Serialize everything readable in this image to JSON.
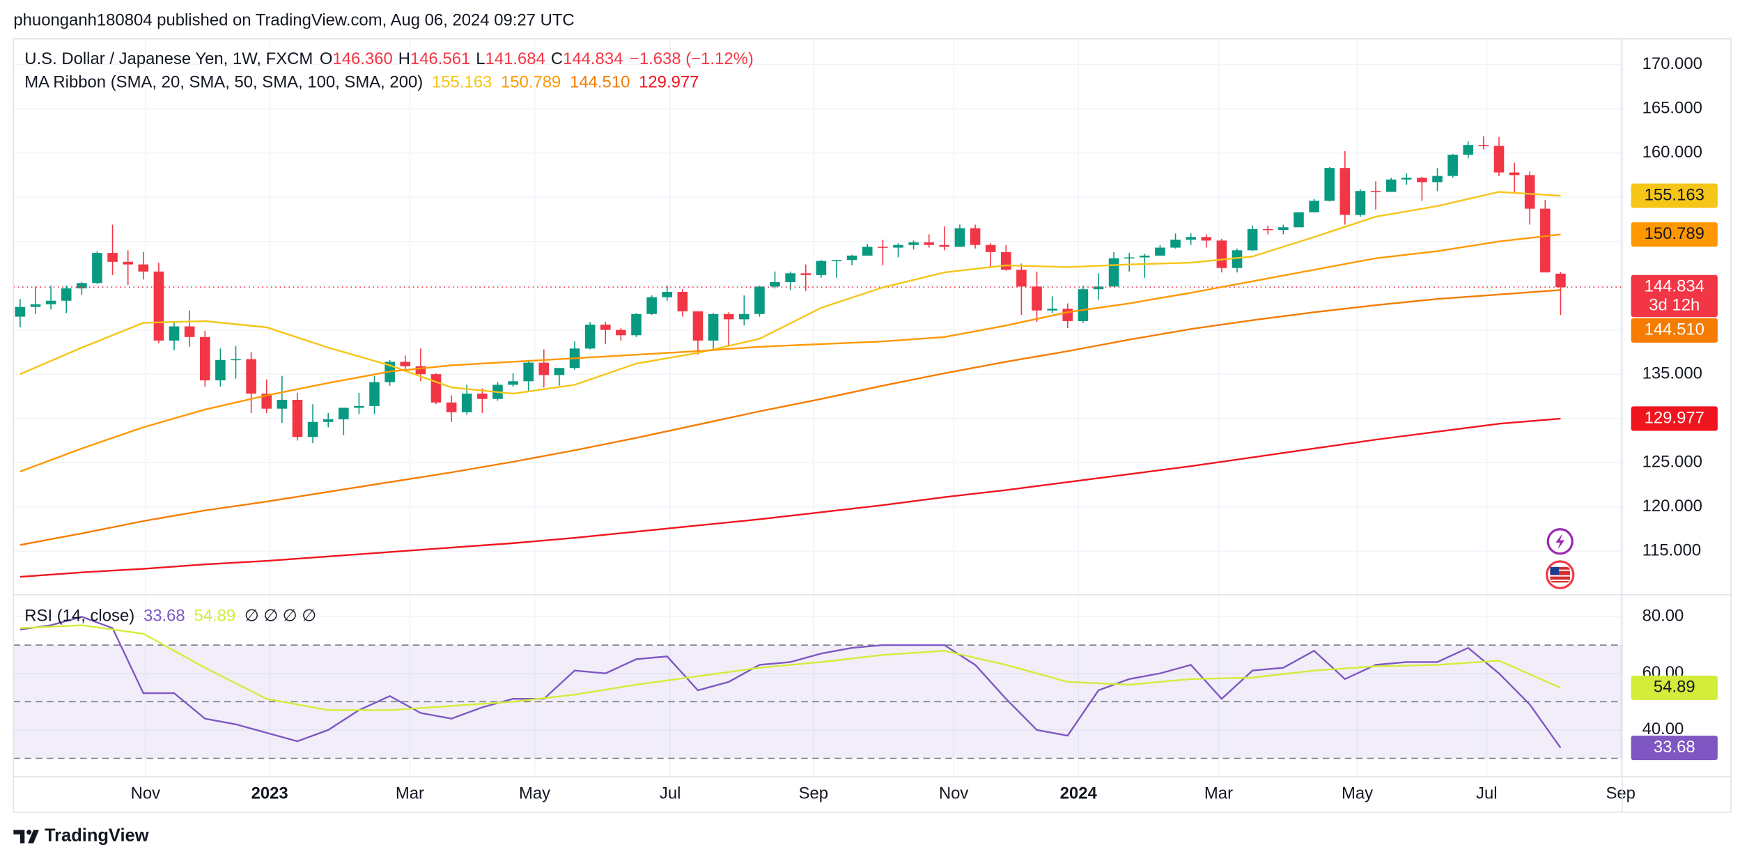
{
  "header": {
    "published": "phuonganh180804 published on TradingView.com, Aug 06, 2024 09:27 UTC"
  },
  "footer": {
    "brand": "TradingView"
  },
  "chart_data": [
    {
      "type": "candlestick",
      "title": "U.S. Dollar / Japanese Yen, 1W, FXCM",
      "ohlc_legend": [
        {
          "key": "O",
          "value": "146.360"
        },
        {
          "key": "H",
          "value": "146.561"
        },
        {
          "key": "L",
          "value": "141.684"
        },
        {
          "key": "C",
          "value": "144.834"
        }
      ],
      "change": "−1.638 (−1.12%)",
      "indicator": "MA Ribbon (SMA, 20, SMA, 50, SMA, 100, SMA, 200)",
      "up_color": "#089981",
      "down_color": "#f23645",
      "open": [
        141.5,
        142.6,
        142.9,
        143.3,
        144.7,
        145.3,
        148.7,
        147.7,
        147.4,
        146.6,
        138.8,
        140.4,
        139.2,
        134.3,
        136.6,
        136.7,
        132.8,
        131.1,
        132.1,
        127.9,
        129.6,
        129.9,
        131.2,
        131.4,
        134.1,
        136.4,
        135.9,
        135.0,
        131.8,
        130.7,
        132.8,
        132.2,
        133.8,
        134.2,
        136.3,
        134.9,
        135.7,
        137.9,
        140.6,
        140.0,
        139.4,
        141.8,
        143.7,
        144.3,
        142.1,
        138.8,
        141.8,
        141.2,
        141.8,
        144.9,
        145.4,
        146.4,
        146.2,
        147.8,
        147.9,
        148.4,
        149.4,
        149.3,
        149.6,
        149.9,
        149.6,
        149.4,
        151.5,
        149.6,
        148.8,
        146.8,
        144.9,
        142.2,
        142.4,
        141.0,
        144.6,
        144.9,
        148.1,
        148.2,
        148.4,
        149.3,
        150.2,
        150.5,
        150.1,
        147.0,
        149.0,
        151.4,
        151.3,
        151.6,
        153.3,
        154.6,
        158.3,
        153.0,
        155.7,
        155.6,
        157.0,
        157.2,
        156.7,
        157.4,
        159.8,
        160.9,
        160.8,
        157.8,
        157.5,
        153.7,
        146.36
      ],
      "high": [
        143.5,
        144.9,
        145.0,
        145.0,
        145.4,
        148.9,
        151.9,
        149.0,
        148.8,
        147.6,
        140.8,
        142.2,
        139.9,
        137.9,
        138.2,
        137.5,
        134.4,
        134.8,
        132.9,
        131.6,
        130.6,
        131.2,
        132.9,
        134.8,
        136.6,
        137.1,
        137.9,
        135.1,
        132.6,
        133.8,
        133.4,
        134.1,
        135.1,
        136.6,
        137.8,
        135.7,
        138.7,
        140.9,
        140.9,
        140.2,
        141.9,
        143.9,
        145.0,
        144.6,
        142.1,
        141.9,
        142.0,
        143.9,
        145.0,
        146.6,
        146.6,
        147.4,
        147.9,
        147.9,
        148.5,
        149.7,
        150.2,
        149.8,
        150.1,
        150.8,
        151.7,
        151.9,
        151.9,
        149.8,
        149.6,
        147.5,
        146.6,
        143.8,
        143.0,
        145.0,
        146.4,
        148.8,
        148.7,
        148.6,
        149.6,
        150.9,
        150.9,
        150.8,
        150.3,
        149.2,
        151.8,
        151.8,
        151.9,
        153.3,
        154.8,
        158.4,
        160.2,
        155.9,
        156.8,
        157.2,
        157.7,
        157.3,
        158.3,
        159.9,
        161.3,
        161.9,
        161.8,
        158.9,
        157.9,
        154.7,
        146.561
      ],
      "low": [
        140.3,
        141.8,
        142.3,
        141.9,
        144.0,
        145.2,
        146.2,
        145.1,
        145.7,
        138.5,
        137.7,
        138.1,
        133.6,
        133.6,
        134.5,
        130.6,
        130.6,
        129.5,
        127.5,
        127.2,
        129.0,
        128.1,
        130.5,
        130.5,
        133.7,
        135.3,
        134.2,
        131.6,
        129.6,
        130.4,
        130.6,
        132.0,
        133.6,
        133.0,
        133.5,
        133.7,
        135.5,
        137.8,
        138.4,
        138.8,
        139.2,
        141.7,
        143.3,
        141.5,
        137.2,
        137.7,
        138.1,
        140.5,
        141.5,
        144.7,
        144.5,
        144.4,
        145.9,
        145.9,
        147.3,
        148.4,
        147.3,
        148.2,
        149.1,
        149.3,
        149.0,
        149.4,
        149.2,
        147.1,
        146.7,
        141.7,
        140.9,
        141.9,
        140.2,
        140.8,
        143.4,
        144.9,
        146.6,
        145.9,
        148.4,
        149.2,
        149.6,
        149.3,
        146.5,
        146.5,
        148.9,
        150.8,
        150.8,
        151.6,
        153.3,
        154.5,
        151.9,
        152.8,
        153.6,
        155.6,
        156.4,
        154.6,
        155.7,
        157.2,
        159.4,
        160.4,
        157.4,
        155.4,
        151.9,
        146.5,
        141.684
      ],
      "close": [
        142.6,
        142.9,
        143.3,
        144.7,
        145.3,
        148.7,
        147.7,
        147.4,
        146.6,
        138.8,
        140.4,
        139.2,
        134.3,
        136.6,
        136.7,
        132.8,
        131.1,
        132.1,
        127.9,
        129.6,
        129.9,
        131.2,
        131.4,
        134.1,
        136.4,
        135.9,
        135.0,
        131.8,
        130.7,
        132.8,
        132.2,
        133.8,
        134.2,
        136.3,
        134.9,
        135.7,
        137.9,
        140.6,
        140.0,
        139.4,
        141.8,
        143.7,
        144.3,
        142.1,
        138.8,
        141.8,
        141.2,
        141.8,
        144.9,
        145.4,
        146.4,
        146.2,
        147.8,
        147.9,
        148.4,
        149.4,
        149.3,
        149.6,
        149.9,
        149.6,
        149.4,
        151.5,
        149.6,
        148.8,
        146.8,
        144.9,
        142.2,
        142.4,
        141.0,
        144.6,
        144.9,
        148.1,
        148.2,
        148.4,
        149.3,
        150.2,
        150.5,
        150.1,
        147.0,
        149.0,
        151.4,
        151.3,
        151.6,
        153.3,
        154.6,
        158.3,
        153.0,
        155.7,
        155.6,
        157.0,
        157.2,
        156.7,
        157.4,
        159.8,
        160.9,
        160.8,
        157.8,
        157.5,
        153.7,
        146.5,
        144.834
      ],
      "last_label": "144.834",
      "countdown": "3d 12h",
      "series": [
        {
          "color": "#f5c518",
          "label_text_color": "#131722",
          "x": [
            0,
            4,
            8,
            12,
            16,
            20,
            24,
            28,
            32,
            36,
            40,
            44,
            48,
            52,
            56,
            60,
            64,
            68,
            72,
            76,
            80,
            84,
            88,
            92,
            96,
            100
          ],
          "values": [
            135.0,
            138.0,
            140.8,
            141.0,
            140.3,
            138.0,
            136.0,
            133.5,
            132.8,
            133.8,
            136.2,
            137.4,
            139.0,
            142.5,
            144.8,
            146.5,
            147.3,
            147.1,
            147.4,
            147.6,
            148.3,
            150.5,
            152.8,
            154.0,
            155.6,
            155.163
          ],
          "value_label": "155.163"
        },
        {
          "color": "#ff9800",
          "label_text_color": "#131722",
          "x": [
            0,
            4,
            8,
            12,
            16,
            20,
            24,
            28,
            32,
            36,
            40,
            44,
            48,
            52,
            56,
            60,
            64,
            68,
            72,
            76,
            80,
            84,
            88,
            92,
            96,
            100
          ],
          "values": [
            124.0,
            126.6,
            129.0,
            131.0,
            132.6,
            134.0,
            135.3,
            136.0,
            136.4,
            136.8,
            137.2,
            137.6,
            138.1,
            138.4,
            138.7,
            139.2,
            140.5,
            142.0,
            143.0,
            144.2,
            145.5,
            146.8,
            148.1,
            148.9,
            150.0,
            150.789
          ],
          "value_label": "150.789"
        },
        {
          "color": "#f57c00",
          "label_text_color": "#ffffff",
          "x": [
            0,
            4,
            8,
            12,
            16,
            20,
            24,
            28,
            32,
            36,
            40,
            44,
            48,
            52,
            56,
            60,
            64,
            68,
            72,
            76,
            80,
            84,
            88,
            92,
            96,
            100
          ],
          "values": [
            115.7,
            117.0,
            118.4,
            119.6,
            120.6,
            121.7,
            122.8,
            123.9,
            125.1,
            126.4,
            127.8,
            129.3,
            130.8,
            132.2,
            133.7,
            135.1,
            136.4,
            137.6,
            138.9,
            140.1,
            141.1,
            142.0,
            142.8,
            143.5,
            144.0,
            144.51
          ],
          "value_label": "144.510"
        },
        {
          "color": "#f0141e",
          "label_text_color": "#ffffff",
          "x": [
            0,
            4,
            8,
            12,
            16,
            20,
            24,
            28,
            32,
            36,
            40,
            44,
            48,
            52,
            56,
            60,
            64,
            68,
            72,
            76,
            80,
            84,
            88,
            92,
            96,
            100
          ],
          "values": [
            112.1,
            112.6,
            113.0,
            113.5,
            113.9,
            114.4,
            114.9,
            115.4,
            115.9,
            116.5,
            117.2,
            117.9,
            118.6,
            119.4,
            120.2,
            121.1,
            121.9,
            122.8,
            123.7,
            124.6,
            125.6,
            126.6,
            127.6,
            128.5,
            129.4,
            129.977
          ],
          "value_label": "129.977"
        }
      ],
      "xlim": [
        -0.43,
        104
      ],
      "xticks": [
        {
          "value": 8.14,
          "label": "Nov"
        },
        {
          "value": 16.2,
          "label": "2023"
        },
        {
          "value": 25.3,
          "label": "Mar"
        },
        {
          "value": 33.4,
          "label": "May"
        },
        {
          "value": 42.2,
          "label": "Jul"
        },
        {
          "value": 51.5,
          "label": "Sep"
        },
        {
          "value": 60.6,
          "label": "Nov"
        },
        {
          "value": 68.7,
          "label": "2024"
        },
        {
          "value": 77.8,
          "label": "Mar"
        },
        {
          "value": 86.8,
          "label": "May"
        },
        {
          "value": 95.2,
          "label": "Jul"
        },
        {
          "value": 103.9,
          "label": "Sep"
        }
      ],
      "ylim": [
        110.2,
        172.9
      ],
      "yticks": [
        {
          "value": 115,
          "label": "115.000"
        },
        {
          "value": 120,
          "label": "120.000"
        },
        {
          "value": 125,
          "label": "125.000"
        },
        {
          "value": 130,
          "label": "130.000"
        },
        {
          "value": 135,
          "label": "135.000"
        },
        {
          "value": 140,
          "label": "140.000"
        },
        {
          "value": 145,
          "label": "145.000"
        },
        {
          "value": 150,
          "label": "150.000"
        },
        {
          "value": 155,
          "label": "155.000"
        },
        {
          "value": 160,
          "label": "160.000"
        },
        {
          "value": 165,
          "label": "165.000"
        },
        {
          "value": 170,
          "label": "170.000"
        }
      ],
      "grid": true
    },
    {
      "type": "line",
      "title": "RSI (14, close)",
      "placeholders": "∅ ∅ ∅ ∅",
      "series": [
        {
          "color": "#7e57c2",
          "label_text_color": "#ffffff",
          "x": [
            0,
            2,
            4,
            6,
            8,
            10,
            12,
            14,
            16,
            18,
            20,
            22,
            24,
            26,
            28,
            30,
            32,
            34,
            36,
            38,
            40,
            42,
            44,
            46,
            48,
            50,
            52,
            54,
            56,
            58,
            60,
            62,
            64,
            66,
            68,
            70,
            72,
            74,
            76,
            78,
            80,
            82,
            84,
            86,
            88,
            90,
            92,
            94,
            96,
            98,
            100
          ],
          "values": [
            75.5,
            77,
            80,
            76,
            53,
            53,
            44,
            42,
            39,
            36,
            40,
            47,
            52,
            46,
            44,
            48,
            51,
            51,
            61,
            60,
            65,
            66,
            54,
            57,
            63,
            64,
            67,
            69,
            70,
            70,
            70,
            63,
            51,
            40,
            38,
            54,
            58,
            60,
            63,
            51,
            61,
            62,
            68,
            58,
            63,
            64,
            64,
            69,
            60,
            49,
            33.68
          ],
          "value_label": "33.68"
        },
        {
          "color": "#d4ec3a",
          "label_text_color": "#131722",
          "x": [
            0,
            4,
            8,
            12,
            16,
            20,
            24,
            28,
            32,
            36,
            40,
            44,
            48,
            52,
            56,
            60,
            64,
            68,
            72,
            76,
            80,
            84,
            88,
            92,
            96,
            100
          ],
          "values": [
            76,
            77,
            74,
            62,
            51,
            47,
            47,
            48.5,
            50,
            52.5,
            56,
            59,
            62,
            64,
            66.5,
            68,
            63,
            57,
            56,
            58,
            58.5,
            61,
            62.5,
            63,
            64.5,
            54.89
          ],
          "value_label": "54.89"
        }
      ],
      "band": [
        30,
        70
      ],
      "midline": 50,
      "band_color": "rgba(126,87,194,0.1)",
      "ylim": [
        23.5,
        87.4
      ],
      "yticks": [
        {
          "value": 40,
          "label": "40.00"
        },
        {
          "value": 60,
          "label": "60.00"
        },
        {
          "value": 80,
          "label": "80.00"
        }
      ],
      "grid": true
    }
  ]
}
